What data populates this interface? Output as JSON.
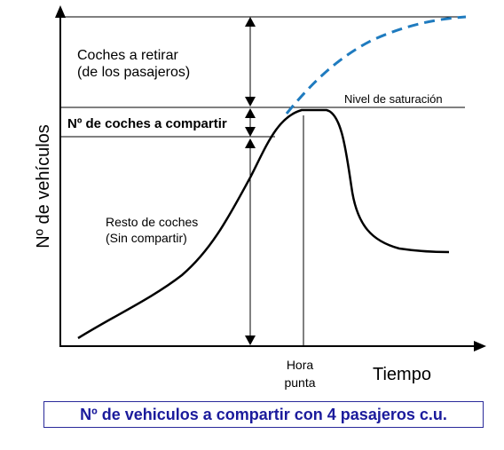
{
  "figure": {
    "y_axis_label": "Nº de vehículos",
    "x_axis_label": "Tiempo",
    "label_cars_to_remove": "Coches a retirar",
    "label_cars_to_remove_line2": "(de los pasajeros)",
    "label_cars_to_share": "Nº de coches a compartir",
    "label_saturation": "Nivel de saturación",
    "label_remaining": "Resto de coches",
    "label_remaining_line2": "(Sin compartir)",
    "label_peak": "Hora",
    "label_peak_line2": "punta",
    "caption": "Nº de vehiculos a compartir con 4 pasajeros c.u.",
    "colors": {
      "curve": "#000000",
      "demand_dashed": "#1f7bbf",
      "caption_text": "#1b1b9c"
    }
  }
}
